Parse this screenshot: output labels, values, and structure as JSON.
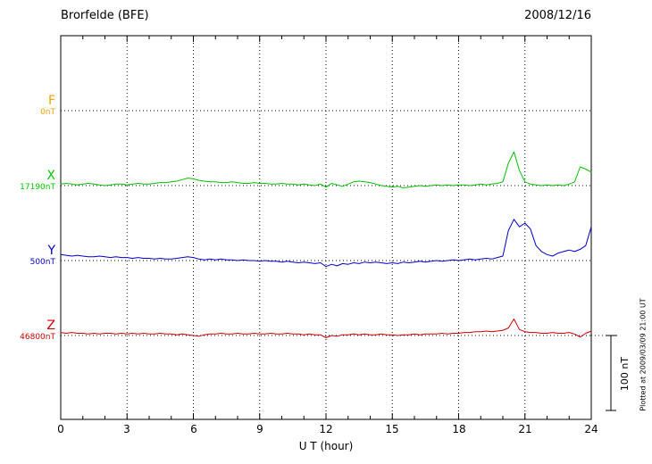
{
  "header": {
    "station": "Brorfelde (BFE)",
    "date": "2008/12/16"
  },
  "x_axis": {
    "label": "U T (hour)",
    "ticks": [
      "0",
      "3",
      "6",
      "9",
      "12",
      "15",
      "18",
      "21",
      "24"
    ]
  },
  "scale_bar": {
    "label": "100 nT",
    "nT": 100
  },
  "footer_note": "Plotted at 2009/03/09 21:00 UT",
  "chart_data": {
    "type": "line",
    "title": "Brorfelde (BFE) magnetogram 2008/12/16",
    "xlabel": "U T (hour)",
    "x_range": [
      0,
      24
    ],
    "x_start": 0,
    "x_step_hours": 0.25,
    "grid": "dotted vertical every 3 h, dotted horizontal baseline per trace",
    "scale_nT_per_division": 100,
    "series": [
      {
        "name": "F",
        "baseline_label": "0nT",
        "color": "#f0a000",
        "values": []
      },
      {
        "name": "X",
        "baseline_label": "17190nT",
        "color": "#00c400",
        "values": [
          2,
          3,
          2,
          1,
          2,
          3,
          2,
          1,
          0,
          1,
          2,
          2,
          1,
          2,
          3,
          2,
          2,
          3,
          4,
          4,
          5,
          6,
          8,
          10,
          9,
          7,
          6,
          5,
          5,
          4,
          4,
          5,
          4,
          3,
          3,
          4,
          3,
          3,
          2,
          2,
          3,
          2,
          2,
          1,
          2,
          1,
          0,
          2,
          -2,
          3,
          1,
          -1,
          2,
          5,
          6,
          5,
          4,
          2,
          0,
          -1,
          -2,
          -1,
          -3,
          -2,
          -1,
          0,
          -1,
          0,
          1,
          0,
          1,
          0,
          1,
          1,
          0,
          1,
          2,
          1,
          2,
          3,
          5,
          30,
          45,
          20,
          5,
          2,
          1,
          0,
          1,
          0,
          1,
          0,
          2,
          5,
          25,
          22,
          18
        ]
      },
      {
        "name": "Y",
        "baseline_label": "500nT",
        "color": "#0000d0",
        "values": [
          8,
          7,
          6,
          7,
          6,
          5,
          5,
          6,
          5,
          4,
          5,
          4,
          4,
          3,
          4,
          3,
          3,
          2,
          3,
          2,
          2,
          3,
          4,
          5,
          4,
          2,
          1,
          2,
          1,
          2,
          1,
          1,
          0,
          1,
          0,
          0,
          -1,
          0,
          -1,
          -1,
          -2,
          -1,
          -2,
          -3,
          -2,
          -3,
          -4,
          -3,
          -8,
          -5,
          -7,
          -4,
          -5,
          -3,
          -4,
          -2,
          -3,
          -2,
          -3,
          -4,
          -3,
          -4,
          -2,
          -3,
          -2,
          -1,
          -2,
          -1,
          0,
          -1,
          0,
          1,
          0,
          1,
          2,
          1,
          2,
          3,
          2,
          4,
          6,
          40,
          55,
          45,
          50,
          42,
          20,
          12,
          8,
          6,
          10,
          12,
          14,
          12,
          15,
          20,
          45
        ]
      },
      {
        "name": "Z",
        "baseline_label": "46800nT",
        "color": "#d00000",
        "values": [
          4,
          3,
          4,
          3,
          3,
          2,
          3,
          2,
          3,
          3,
          2,
          3,
          2,
          3,
          2,
          3,
          2,
          2,
          3,
          2,
          2,
          1,
          2,
          1,
          0,
          -1,
          1,
          2,
          2,
          3,
          2,
          2,
          3,
          2,
          2,
          3,
          2,
          2,
          3,
          2,
          2,
          3,
          2,
          2,
          1,
          2,
          1,
          1,
          -3,
          0,
          -1,
          1,
          1,
          2,
          1,
          2,
          1,
          1,
          2,
          1,
          1,
          0,
          1,
          1,
          2,
          1,
          2,
          2,
          2,
          3,
          2,
          3,
          3,
          4,
          4,
          5,
          5,
          6,
          5,
          6,
          7,
          10,
          22,
          8,
          5,
          4,
          4,
          3,
          3,
          4,
          3,
          3,
          4,
          2,
          -2,
          3,
          6
        ]
      }
    ]
  }
}
